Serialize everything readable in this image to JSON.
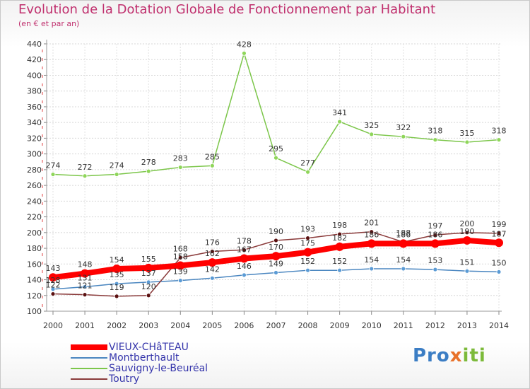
{
  "chart_data": {
    "type": "line",
    "title": "Evolution de la Dotation Globale de Fonctionnement par Habitant",
    "subtitle": "(en € et par an)",
    "xlabel": "",
    "ylabel": "",
    "categories": [
      "2000",
      "2001",
      "2002",
      "2003",
      "2004",
      "2005",
      "2006",
      "2007",
      "2008",
      "2009",
      "2010",
      "2011",
      "2012",
      "2013",
      "2014"
    ],
    "ylim": [
      100,
      440
    ],
    "yticks": [
      "100",
      "120",
      "140",
      "160",
      "180",
      "200",
      "220",
      "240",
      "260",
      "280",
      "300",
      "320",
      "340",
      "360",
      "380",
      "400",
      "420",
      "440"
    ],
    "grid": true,
    "legend_position": "bottom-left",
    "series": [
      {
        "name": "VIEUX-CHâTEAU",
        "color": "#ff0000",
        "values": [
          143,
          148,
          154,
          155,
          158,
          162,
          167,
          170,
          175,
          182,
          186,
          186,
          186,
          190,
          187
        ],
        "labels": [
          "143",
          "148",
          "154",
          "155",
          "158",
          "162",
          "167",
          "170",
          "175",
          "182",
          "186",
          "186",
          "186",
          "190",
          "187"
        ]
      },
      {
        "name": "Montberthault",
        "color": "#5b9bd5",
        "values": [
          128,
          131,
          135,
          137,
          139,
          142,
          146,
          149,
          152,
          152,
          154,
          154,
          153,
          151,
          150
        ],
        "labels": [
          "128",
          "131",
          "135",
          "137",
          "139",
          "142",
          "146",
          "149",
          "152",
          "152",
          "154",
          "154",
          "153",
          "151",
          "150"
        ]
      },
      {
        "name": "Sauvigny-le-Beuréal",
        "color": "#99dd66",
        "values": [
          274,
          272,
          274,
          278,
          283,
          285,
          428,
          295,
          277,
          341,
          325,
          322,
          318,
          315,
          318
        ],
        "labels": [
          "274",
          "272",
          "274",
          "278",
          "283",
          "285",
          "428",
          "295",
          "277",
          "341",
          "325",
          "322",
          "318",
          "315",
          "318"
        ]
      },
      {
        "name": "Toutry",
        "color": "#7a2222",
        "values": [
          122,
          121,
          119,
          120,
          168,
          176,
          178,
          190,
          193,
          198,
          201,
          188,
          197,
          200,
          199
        ],
        "labels": [
          "122",
          "121",
          "119",
          "120",
          "168",
          "176",
          "178",
          "190",
          "193",
          "198",
          "201",
          "188",
          "197",
          "200",
          "199"
        ]
      }
    ]
  },
  "logo_text": {
    "part1": "Pro",
    "part2": "x",
    "part3": "iti"
  }
}
